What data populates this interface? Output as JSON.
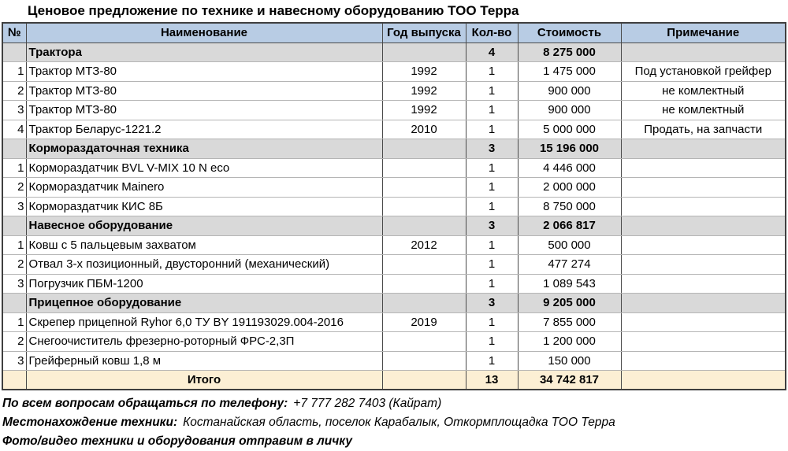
{
  "title": "Ценовое предложение по технике и навесному оборудованию ТОО Терра",
  "colors": {
    "header_bg": "#B8CCE4",
    "section_bg": "#D9D9D9",
    "total_bg": "#FCEFD4"
  },
  "table": {
    "columns": [
      "№",
      "Наименование",
      "Год выпуска",
      "Кол-во",
      "Стоимость",
      "Примечание"
    ],
    "rows": [
      {
        "type": "section",
        "num": "",
        "name": "Трактора",
        "year": "",
        "qty": "4",
        "cost": "8 275 000",
        "note": ""
      },
      {
        "type": "item",
        "num": "1",
        "name": "Трактор МТЗ-80",
        "year": "1992",
        "qty": "1",
        "cost": "1 475 000",
        "note": "Под установкой грейфер"
      },
      {
        "type": "item",
        "num": "2",
        "name": "Трактор МТЗ-80",
        "year": "1992",
        "qty": "1",
        "cost": "900 000",
        "note": "не комлектный"
      },
      {
        "type": "item",
        "num": "3",
        "name": "Трактор МТЗ-80",
        "year": "1992",
        "qty": "1",
        "cost": "900 000",
        "note": "не комлектный"
      },
      {
        "type": "item",
        "num": "4",
        "name": "Трактор Беларус-1221.2",
        "year": "2010",
        "qty": "1",
        "cost": "5 000 000",
        "note": "Продать, на запчасти"
      },
      {
        "type": "section",
        "num": "",
        "name": "Кормораздаточная техника",
        "year": "",
        "qty": "3",
        "cost": "15 196 000",
        "note": ""
      },
      {
        "type": "item",
        "num": "1",
        "name": "Кормораздатчик BVL V-MIX 10 N eco",
        "year": "",
        "qty": "1",
        "cost": "4 446 000",
        "note": ""
      },
      {
        "type": "item",
        "num": "2",
        "name": "Кормораздатчик Mainero",
        "year": "",
        "qty": "1",
        "cost": "2 000 000",
        "note": ""
      },
      {
        "type": "item",
        "num": "3",
        "name": "Кормораздатчик КИС 8Б",
        "year": "",
        "qty": "1",
        "cost": "8 750 000",
        "note": ""
      },
      {
        "type": "section",
        "num": "",
        "name": "Навесное оборудование",
        "year": "",
        "qty": "3",
        "cost": "2 066 817",
        "note": ""
      },
      {
        "type": "item",
        "num": "1",
        "name": "Ковш с 5 пальцевым захватом",
        "year": "2012",
        "qty": "1",
        "cost": "500 000",
        "note": ""
      },
      {
        "type": "item",
        "num": "2",
        "name": "Отвал 3-х позиционный, двусторонний (механический)",
        "year": "",
        "qty": "1",
        "cost": "477 274",
        "note": ""
      },
      {
        "type": "item",
        "num": "3",
        "name": "Погрузчик ПБМ-1200",
        "year": "",
        "qty": "1",
        "cost": "1 089 543",
        "note": ""
      },
      {
        "type": "section",
        "num": "",
        "name": "Прицепное оборудование",
        "year": "",
        "qty": "3",
        "cost": "9 205 000",
        "note": ""
      },
      {
        "type": "item",
        "num": "1",
        "name": "Скрепер прицепной Ryhor 6,0 ТУ BY 191193029.004-2016",
        "year": "2019",
        "qty": "1",
        "cost": "7 855 000",
        "note": ""
      },
      {
        "type": "item",
        "num": "2",
        "name": "Снегоочиститель фрезерно-роторный ФРС-2,3П",
        "year": "",
        "qty": "1",
        "cost": "1 200 000",
        "note": ""
      },
      {
        "type": "item",
        "num": "3",
        "name": "Грейферный ковш 1,8 м",
        "year": "",
        "qty": "1",
        "cost": "150 000",
        "note": ""
      },
      {
        "type": "total",
        "num": "",
        "name": "Итого",
        "year": "",
        "qty": "13",
        "cost": "34 742 817",
        "note": ""
      }
    ]
  },
  "footer": {
    "lines": [
      {
        "label": "По всем вопросам обращаться по телефону:",
        "value": "+7 777 282 7403 (Кайрат)"
      },
      {
        "label": "Местонахождение техники:",
        "value": "Костанайская область, поселок Карабалык, Откормплощадка ТОО Терра"
      },
      {
        "label": "Фото/видео техники и оборудования отправим в личку",
        "value": ""
      }
    ]
  }
}
